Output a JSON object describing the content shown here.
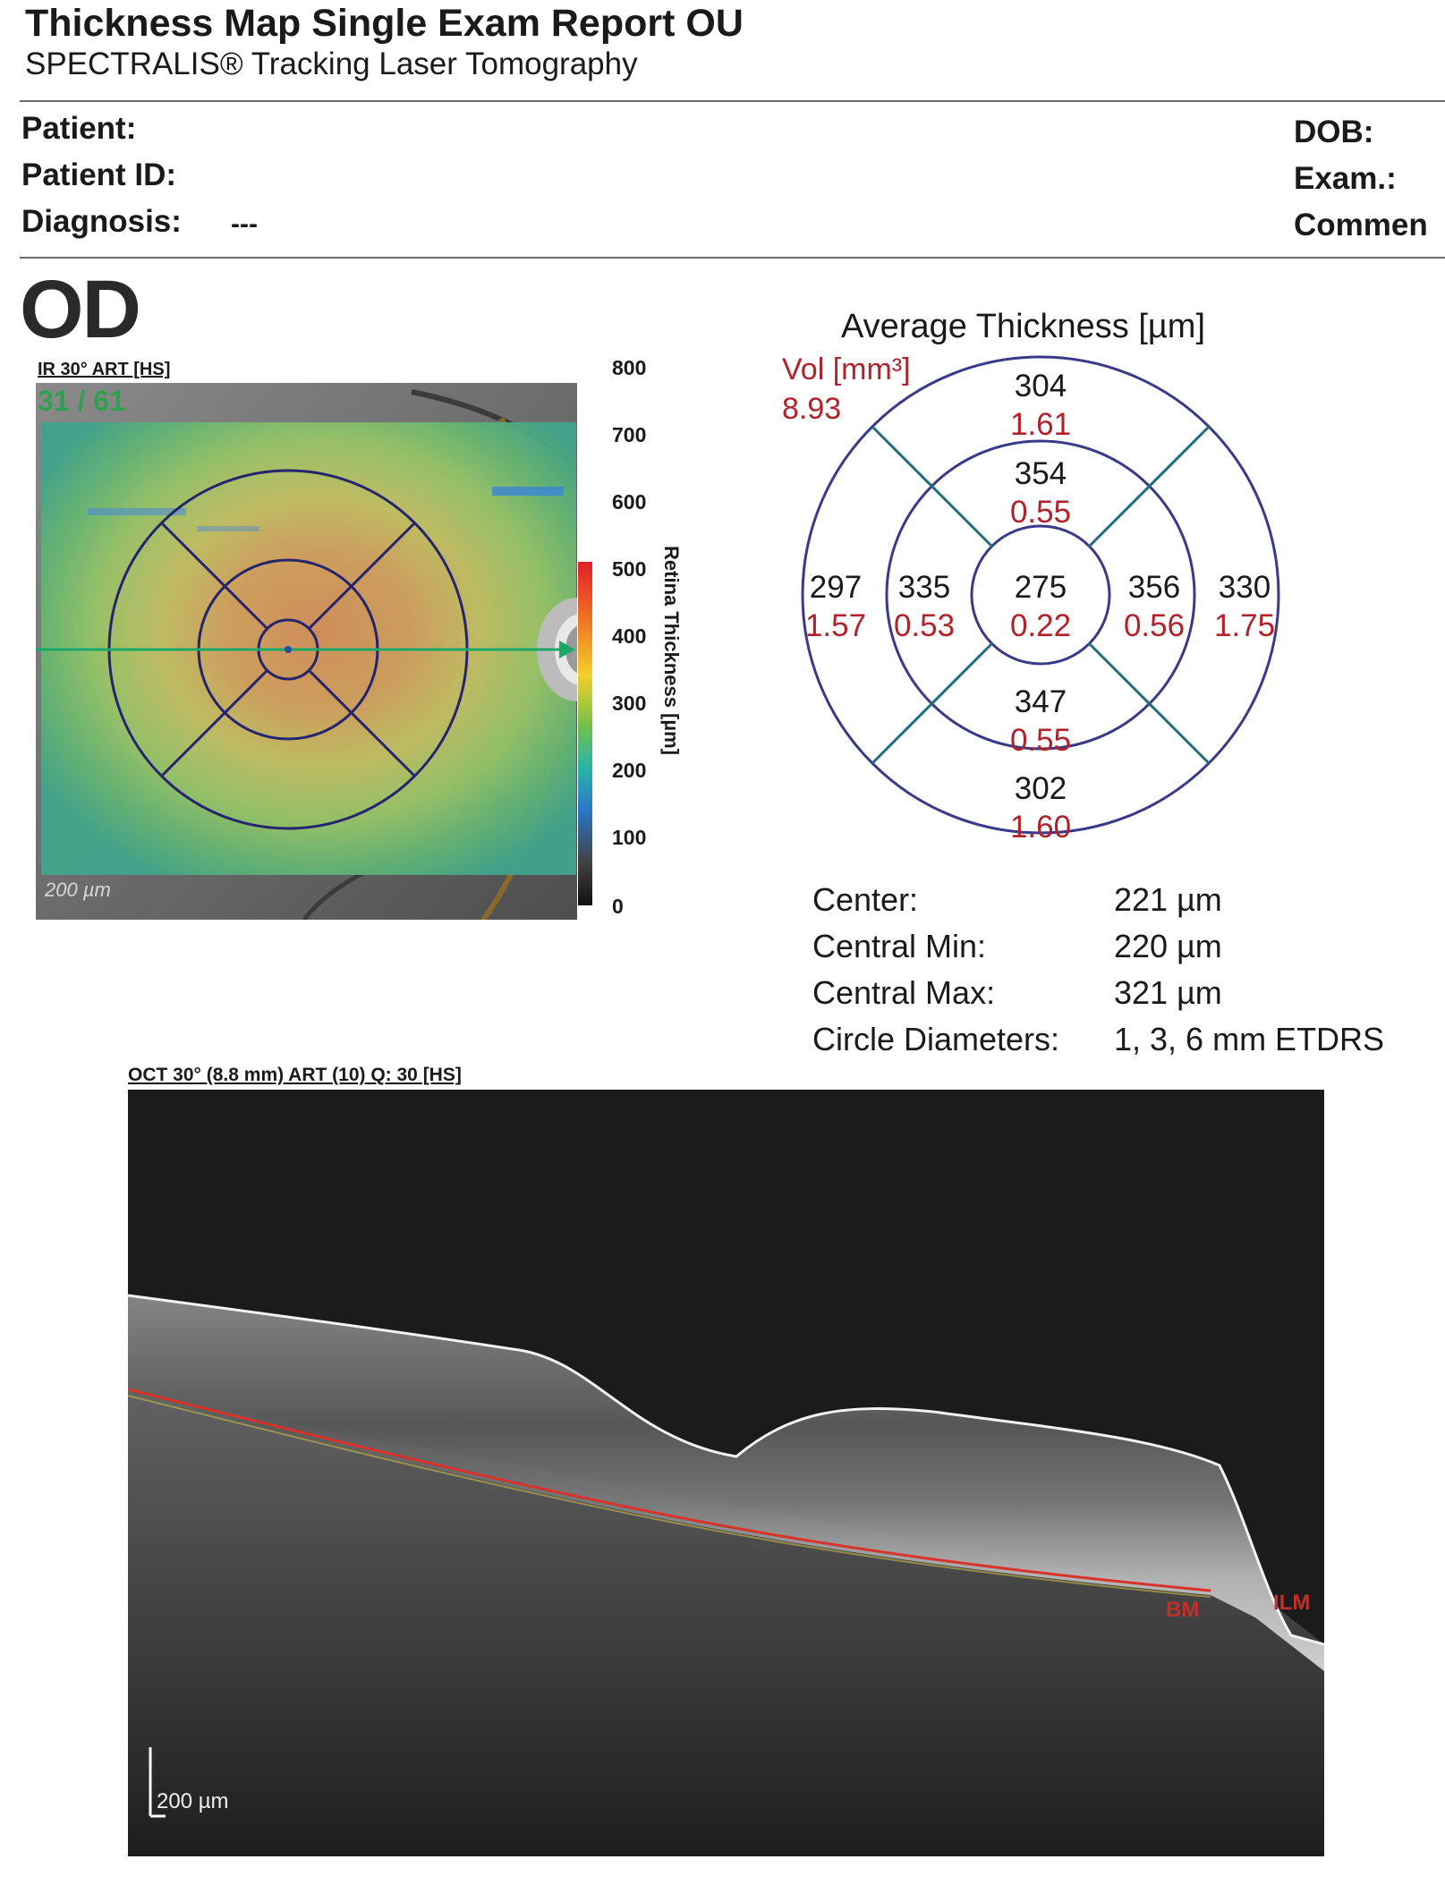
{
  "header": {
    "title": "Thickness Map Single Exam Report OU",
    "subtitle": "SPECTRALIS® Tracking Laser Tomography"
  },
  "patient_info": {
    "patient_label": "Patient:",
    "patient_id_label": "Patient ID:",
    "diagnosis_label": "Diagnosis:",
    "diagnosis_value": "---",
    "dob_label": "DOB:",
    "exam_label": "Exam.:",
    "comment_label": "Commen"
  },
  "eye": "OD",
  "ir_image": {
    "caption": "IR 30° ART [HS]",
    "frame_counter": "31 / 61",
    "scale_bar_label": "200 µm"
  },
  "color_scale": {
    "ticks": [
      "800",
      "700",
      "600",
      "500",
      "400",
      "300",
      "200",
      "100",
      "0"
    ],
    "label": "Retina Thickness [µm]"
  },
  "etdrs": {
    "title": "Average Thickness [µm]",
    "vol_label": "Vol [mm³]",
    "vol_total": "8.93",
    "sectors": {
      "center": {
        "thickness": "275",
        "volume": "0.22"
      },
      "inner_superior": {
        "thickness": "354",
        "volume": "0.55"
      },
      "inner_inferior": {
        "thickness": "347",
        "volume": "0.55"
      },
      "inner_nasal": {
        "thickness": "356",
        "volume": "0.56"
      },
      "inner_temporal": {
        "thickness": "335",
        "volume": "0.53"
      },
      "outer_superior": {
        "thickness": "304",
        "volume": "1.61"
      },
      "outer_inferior": {
        "thickness": "302",
        "volume": "1.60"
      },
      "outer_nasal": {
        "thickness": "330",
        "volume": "1.75"
      },
      "outer_temporal": {
        "thickness": "297",
        "volume": "1.57"
      }
    }
  },
  "stats": [
    {
      "label": "Center:",
      "value": "221 µm"
    },
    {
      "label": "Central Min:",
      "value": "220 µm"
    },
    {
      "label": "Central Max:",
      "value": "321 µm"
    },
    {
      "label": "Circle Diameters:",
      "value": "1, 3, 6 mm ETDRS"
    }
  ],
  "oct_image": {
    "caption": "OCT 30° (8.8 mm) ART (10) Q: 30 [HS]",
    "bm_label": "BM",
    "ilm_label": "ILM",
    "scale_bar_label": "200 µm"
  },
  "colors": {
    "volume_text": "#b2222a",
    "etdrs_circle": "#3a3a8a",
    "etdrs_spoke": "#1e6e7e",
    "scan_line": "#1aa86a",
    "ilm_line": "#f2f2f2",
    "bm_line": "#d8332a"
  }
}
